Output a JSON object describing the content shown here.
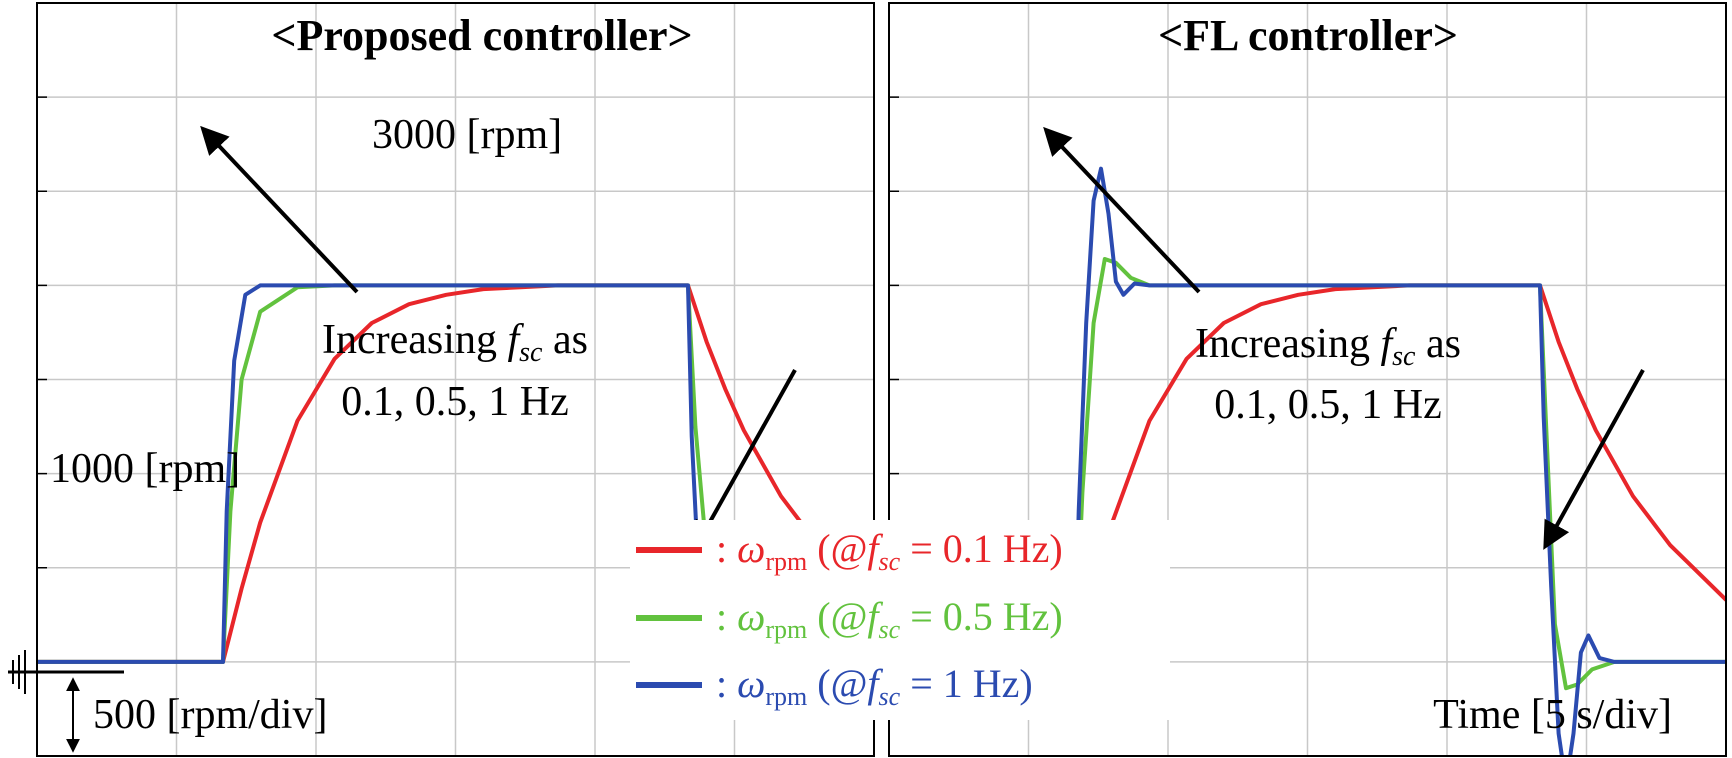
{
  "figure": {
    "time_scale_label": "Time [5 s/div]",
    "speed_scale_label": "500 [rpm/div]",
    "colors": {
      "red": "#e8262a",
      "green": "#62c23e",
      "blue": "#2b4bb0",
      "grid": "#c8c8c8",
      "axis": "#000000"
    }
  },
  "legend": {
    "items": [
      {
        "prefix": ": ",
        "symbol": "ω",
        "sub": "rpm",
        "mid": " (@",
        "f": "f",
        "fsub": "sc",
        "tail": "  = 0.1 Hz)",
        "color": "#e8262a"
      },
      {
        "prefix": ": ",
        "symbol": "ω",
        "sub": "rpm",
        "mid": " (@",
        "f": "f",
        "fsub": "sc",
        "tail": " = 0.5 Hz)",
        "color": "#62c23e"
      },
      {
        "prefix": ": ",
        "symbol": "ω",
        "sub": "rpm",
        "mid": " (@",
        "f": "f",
        "fsub": "sc",
        "tail": " = 1 Hz)",
        "color": "#2b4bb0"
      }
    ]
  },
  "chart_data": [
    {
      "type": "line",
      "title": "<Proposed controller>",
      "xlabel": "",
      "ylabel": "",
      "x_unit": "s",
      "y_unit": "rpm",
      "xlim": [
        0,
        22.5
      ],
      "ylim": [
        500,
        4500
      ],
      "grid": true,
      "annotations": {
        "high_speed_label": "3000 [rpm]",
        "low_speed_label": "1000 [rpm]",
        "trend_line1_pre": "Increasing ",
        "trend_f": "f",
        "trend_fsub": "sc",
        "trend_line1_post": " as",
        "trend_line2": "0.1, 0.5, 1 Hz"
      },
      "series": [
        {
          "name": "ωrpm (@fsc = 0.1 Hz)",
          "color": "#e8262a",
          "x": [
            0,
            5,
            5.5,
            6,
            7,
            8,
            9,
            10,
            11,
            12,
            13,
            14,
            15,
            16,
            17.5,
            18,
            18.5,
            19,
            20,
            21,
            22.5
          ],
          "y": [
            1000,
            1000,
            1390,
            1740,
            2280,
            2610,
            2800,
            2900,
            2950,
            2980,
            2990,
            3000,
            3000,
            3000,
            3000,
            2700,
            2450,
            2230,
            1880,
            1620,
            1330
          ]
        },
        {
          "name": "ωrpm (@fsc = 0.5 Hz)",
          "color": "#62c23e",
          "x": [
            0,
            5,
            5.2,
            5.5,
            6,
            7,
            8,
            17.5,
            17.7,
            18,
            18.5,
            19,
            20,
            22.5
          ],
          "y": [
            1000,
            1000,
            1800,
            2500,
            2860,
            2990,
            3000,
            3000,
            2250,
            1580,
            1160,
            1040,
            1000,
            1000
          ]
        },
        {
          "name": "ωrpm (@fsc = 1 Hz)",
          "color": "#2b4bb0",
          "x": [
            0,
            5,
            5.1,
            5.3,
            5.6,
            6,
            7,
            17.5,
            17.6,
            17.8,
            18.1,
            18.5,
            19,
            22.5
          ],
          "y": [
            1000,
            1000,
            1800,
            2600,
            2950,
            3000,
            3000,
            3000,
            2200,
            1400,
            1080,
            1010,
            1000,
            1000
          ]
        }
      ]
    },
    {
      "type": "line",
      "title": "<FL controller>",
      "xlabel": "",
      "ylabel": "",
      "x_unit": "s",
      "y_unit": "rpm",
      "xlim": [
        0,
        22.5
      ],
      "ylim": [
        500,
        4500
      ],
      "grid": true,
      "annotations": {
        "trend_line1_pre": "Increasing ",
        "trend_f": "f",
        "trend_fsub": "sc",
        "trend_line1_post": " as",
        "trend_line2": "0.1, 0.5, 1 Hz"
      },
      "series": [
        {
          "name": "ωrpm (@fsc = 0.1 Hz)",
          "color": "#e8262a",
          "x": [
            0,
            5,
            5.5,
            6,
            7,
            8,
            9,
            10,
            11,
            12,
            13,
            14,
            15,
            16,
            17.5,
            18,
            18.5,
            19,
            20,
            21,
            22.5
          ],
          "y": [
            1000,
            1000,
            1390,
            1740,
            2280,
            2610,
            2800,
            2900,
            2950,
            2980,
            2990,
            3000,
            3000,
            3000,
            3000,
            2700,
            2450,
            2230,
            1880,
            1620,
            1330
          ]
        },
        {
          "name": "ωrpm (@fsc = 0.5 Hz)",
          "color": "#62c23e",
          "x": [
            0,
            5,
            5.2,
            5.5,
            5.8,
            6.1,
            6.5,
            7,
            8,
            17.5,
            17.7,
            17.9,
            18.2,
            18.5,
            18.9,
            19.5,
            22.5
          ],
          "y": [
            1000,
            1000,
            1900,
            2800,
            3140,
            3120,
            3040,
            3000,
            3000,
            3000,
            2100,
            1200,
            860,
            880,
            960,
            1000,
            1000
          ]
        },
        {
          "name": "ωrpm (@fsc = 1 Hz)",
          "color": "#2b4bb0",
          "x": [
            0,
            5,
            5.1,
            5.3,
            5.5,
            5.7,
            5.9,
            6.1,
            6.3,
            6.6,
            7,
            8,
            17.5,
            17.6,
            17.8,
            18,
            18.2,
            18.4,
            18.6,
            18.8,
            19.1,
            19.5,
            22.5
          ],
          "y": [
            1000,
            1000,
            1800,
            2800,
            3450,
            3620,
            3380,
            3020,
            2950,
            3010,
            3000,
            3000,
            3000,
            2300,
            1400,
            620,
            350,
            620,
            1050,
            1140,
            1020,
            1000,
            1000
          ]
        }
      ]
    }
  ]
}
